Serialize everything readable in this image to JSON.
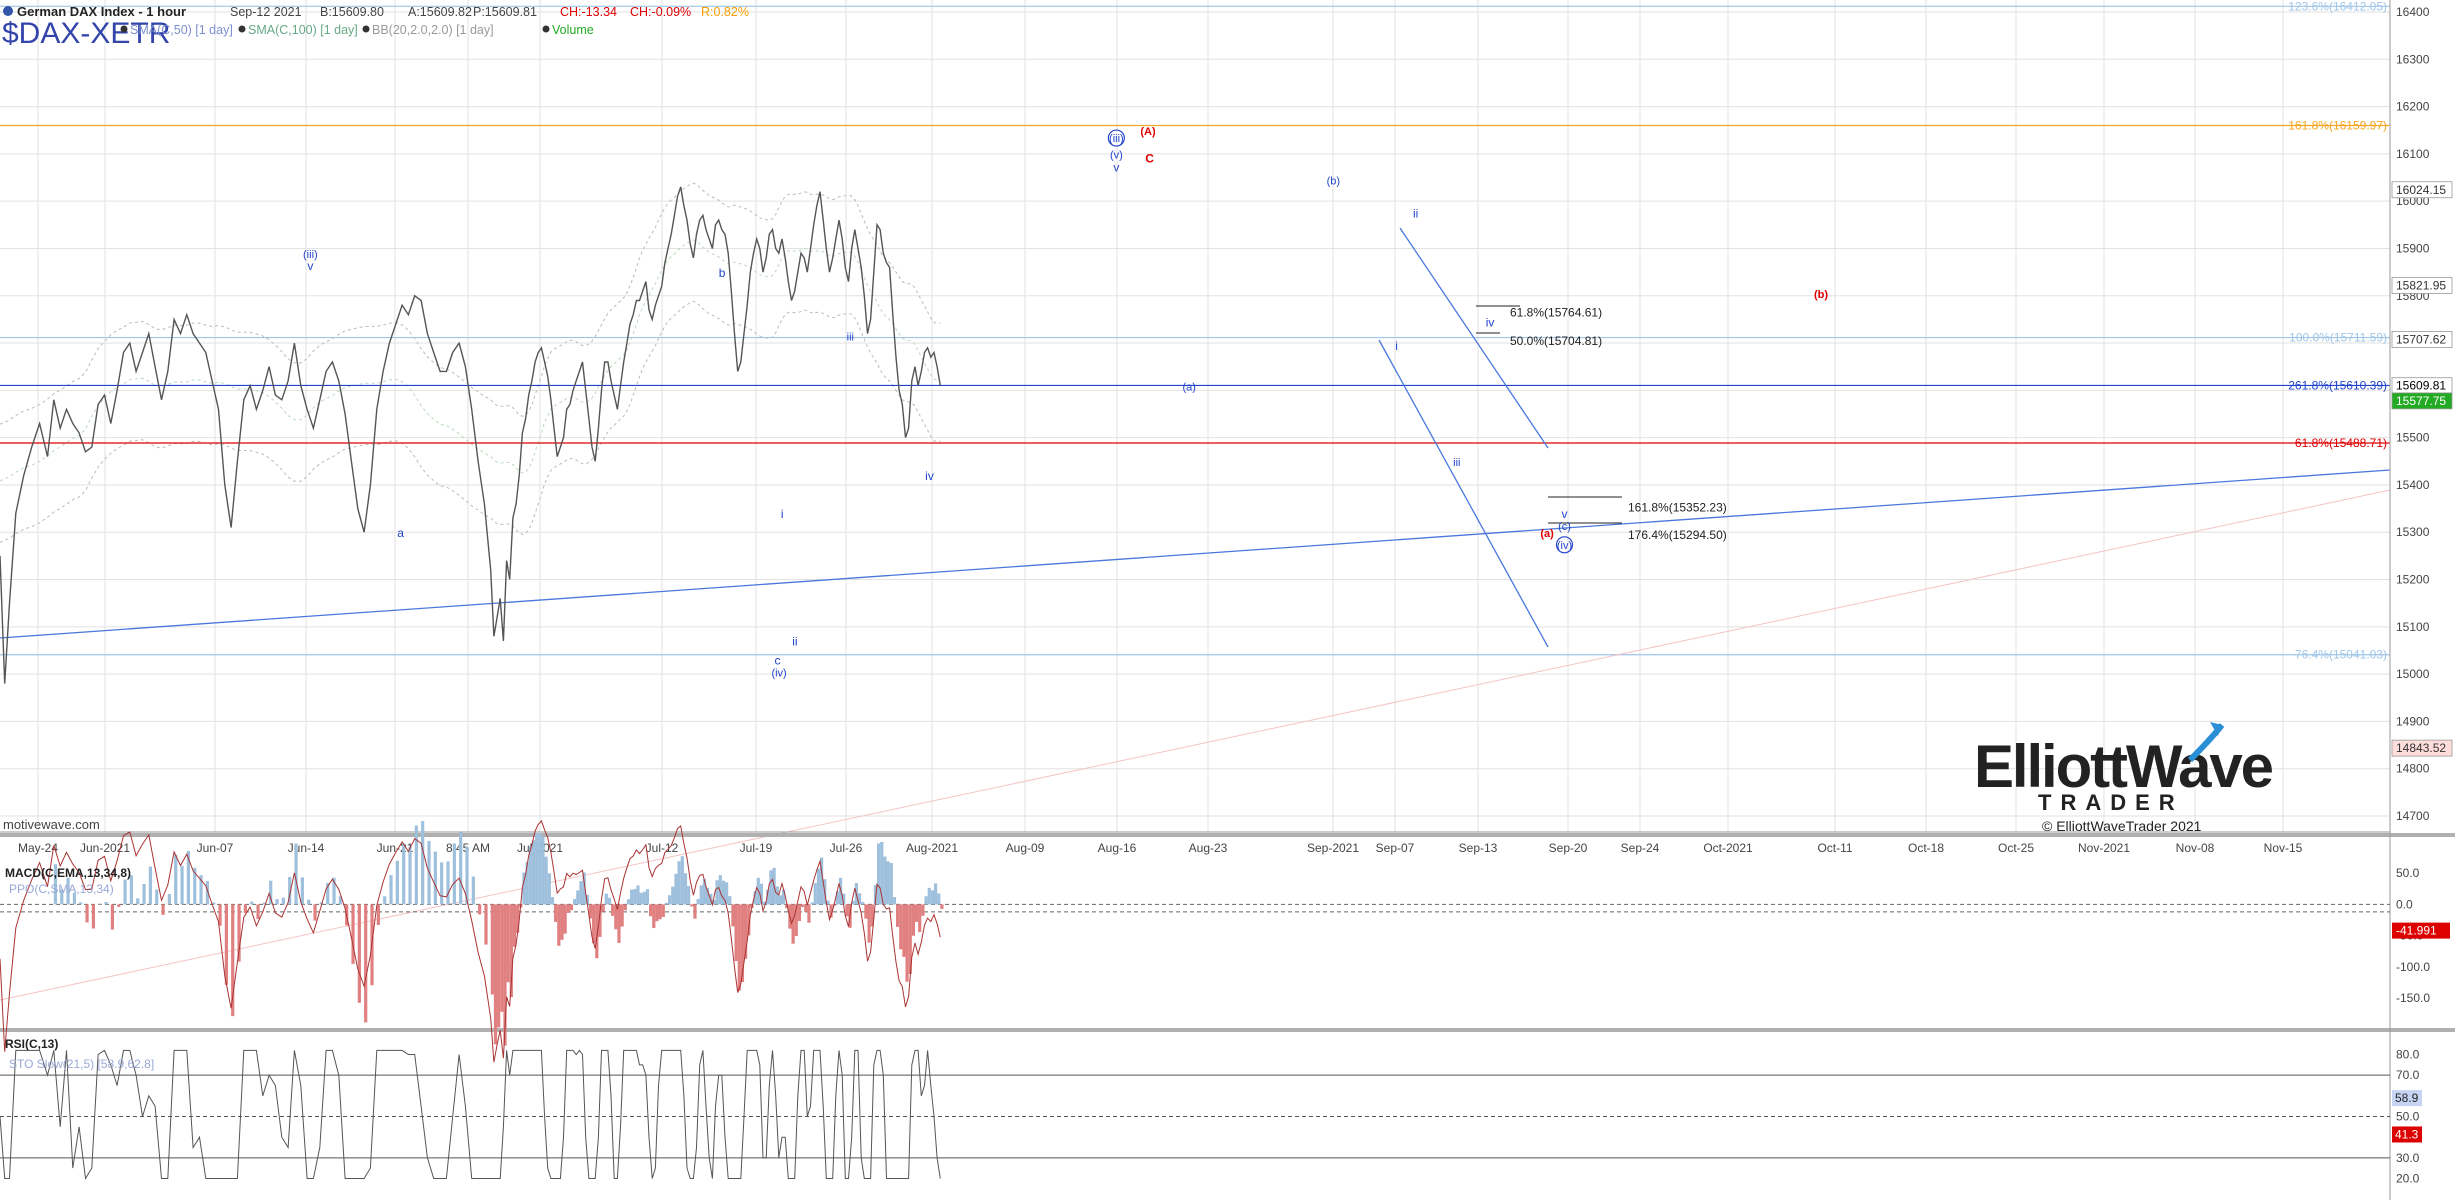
{
  "header": {
    "title": "German DAX Index - 1 hour",
    "date": "Sep-12 2021",
    "bid": "B:15609.80",
    "ask": "A:15609.82",
    "price": "P:15609.81",
    "change": "CH:-13.34",
    "change_pct": "CH:-0.09%",
    "range": "R:0.82%",
    "symbol": "$DAX-XETR",
    "indicators": [
      "SMA(C,50) [1 day]",
      "SMA(C,100) [1 day]",
      "BB(20,2.0,2.0) [1 day]",
      "Volume"
    ]
  },
  "watermark": "motivewave.com",
  "brand": {
    "line1": "ElliottWave",
    "line2": "TRADER",
    "copyright": "© ElliottWaveTrader 2021"
  },
  "colors": {
    "bars": "#555555",
    "blue": "#2244cc",
    "red": "#dd0000",
    "orange": "#f5a623",
    "light_blue": "#9fc6e8",
    "grid": "#e2e2e2"
  },
  "chart_data": [
    {
      "type": "line",
      "title": "German DAX Index - 1 hour",
      "x_ticks": [
        "May-24",
        "Jun-2021",
        "Jun-07",
        "Jun-14",
        "Jun-21",
        "8:45 AM",
        "Jul-2021",
        "Jul-12",
        "Jul-19",
        "Jul-26",
        "Aug-2021",
        "Aug-09",
        "Aug-16",
        "Aug-23",
        "Sep-2021",
        "Sep-07",
        "Sep-13",
        "Sep-20",
        "Sep-24",
        "Oct-2021",
        "Oct-11",
        "Oct-18",
        "Oct-25",
        "Nov-2021",
        "Nov-08",
        "Nov-15"
      ],
      "y_ticks": [
        14700,
        14800,
        14900,
        15000,
        15100,
        15200,
        15300,
        15400,
        15500,
        15600,
        15700,
        15800,
        15900,
        16000,
        16100,
        16200,
        16300,
        16400
      ],
      "ylim": [
        14660,
        16430
      ],
      "price_path": [
        [
          0,
          15250
        ],
        [
          3,
          14980
        ],
        [
          6,
          15150
        ],
        [
          10,
          15340
        ],
        [
          15,
          15420
        ],
        [
          20,
          15480
        ],
        [
          25,
          15530
        ],
        [
          30,
          15460
        ],
        [
          34,
          15580
        ],
        [
          38,
          15520
        ],
        [
          42,
          15560
        ],
        [
          46,
          15530
        ],
        [
          50,
          15510
        ],
        [
          54,
          15470
        ],
        [
          58,
          15480
        ],
        [
          62,
          15570
        ],
        [
          66,
          15590
        ],
        [
          70,
          15530
        ],
        [
          74,
          15600
        ],
        [
          78,
          15680
        ],
        [
          82,
          15700
        ],
        [
          86,
          15640
        ],
        [
          90,
          15680
        ],
        [
          94,
          15720
        ],
        [
          98,
          15650
        ],
        [
          102,
          15580
        ],
        [
          106,
          15640
        ],
        [
          110,
          15750
        ],
        [
          114,
          15720
        ],
        [
          118,
          15760
        ],
        [
          122,
          15720
        ],
        [
          126,
          15700
        ],
        [
          130,
          15680
        ],
        [
          134,
          15620
        ],
        [
          138,
          15560
        ],
        [
          142,
          15400
        ],
        [
          146,
          15310
        ],
        [
          150,
          15450
        ],
        [
          154,
          15580
        ],
        [
          158,
          15610
        ],
        [
          162,
          15560
        ],
        [
          166,
          15600
        ],
        [
          170,
          15650
        ],
        [
          174,
          15590
        ],
        [
          178,
          15580
        ],
        [
          182,
          15620
        ],
        [
          186,
          15700
        ],
        [
          190,
          15610
        ],
        [
          194,
          15560
        ],
        [
          198,
          15520
        ],
        [
          202,
          15580
        ],
        [
          206,
          15640
        ],
        [
          210,
          15660
        ],
        [
          214,
          15620
        ],
        [
          218,
          15550
        ],
        [
          222,
          15450
        ],
        [
          226,
          15350
        ],
        [
          230,
          15300
        ],
        [
          234,
          15400
        ],
        [
          238,
          15560
        ],
        [
          242,
          15640
        ],
        [
          246,
          15700
        ],
        [
          250,
          15740
        ],
        [
          254,
          15780
        ],
        [
          258,
          15760
        ],
        [
          262,
          15800
        ],
        [
          266,
          15790
        ],
        [
          270,
          15720
        ],
        [
          274,
          15680
        ],
        [
          278,
          15640
        ],
        [
          282,
          15640
        ],
        [
          286,
          15680
        ],
        [
          290,
          15700
        ],
        [
          294,
          15650
        ],
        [
          298,
          15560
        ],
        [
          302,
          15450
        ],
        [
          306,
          15360
        ],
        [
          310,
          15220
        ],
        [
          312,
          15080
        ],
        [
          314,
          15120
        ],
        [
          316,
          15160
        ],
        [
          318,
          15070
        ],
        [
          320,
          15240
        ],
        [
          322,
          15200
        ],
        [
          324,
          15330
        ],
        [
          326,
          15360
        ],
        [
          328,
          15420
        ],
        [
          330,
          15510
        ],
        [
          332,
          15540
        ],
        [
          334,
          15590
        ],
        [
          336,
          15620
        ],
        [
          338,
          15660
        ],
        [
          340,
          15680
        ],
        [
          342,
          15690
        ],
        [
          344,
          15660
        ],
        [
          346,
          15630
        ],
        [
          348,
          15580
        ],
        [
          350,
          15520
        ],
        [
          352,
          15460
        ],
        [
          354,
          15480
        ],
        [
          356,
          15500
        ],
        [
          358,
          15560
        ],
        [
          360,
          15570
        ],
        [
          362,
          15600
        ],
        [
          364,
          15620
        ],
        [
          366,
          15640
        ],
        [
          368,
          15660
        ],
        [
          370,
          15600
        ],
        [
          372,
          15540
        ],
        [
          374,
          15480
        ],
        [
          376,
          15450
        ],
        [
          378,
          15520
        ],
        [
          380,
          15600
        ],
        [
          382,
          15660
        ],
        [
          384,
          15660
        ],
        [
          386,
          15620
        ],
        [
          388,
          15590
        ],
        [
          390,
          15560
        ],
        [
          392,
          15610
        ],
        [
          394,
          15660
        ],
        [
          396,
          15700
        ],
        [
          398,
          15740
        ],
        [
          400,
          15760
        ],
        [
          402,
          15790
        ],
        [
          404,
          15790
        ],
        [
          406,
          15810
        ],
        [
          408,
          15830
        ],
        [
          410,
          15770
        ],
        [
          412,
          15750
        ],
        [
          414,
          15780
        ],
        [
          416,
          15800
        ],
        [
          418,
          15820
        ],
        [
          420,
          15870
        ],
        [
          422,
          15900
        ],
        [
          424,
          15930
        ],
        [
          426,
          15970
        ],
        [
          428,
          16010
        ],
        [
          430,
          16030
        ],
        [
          432,
          15990
        ],
        [
          434,
          15960
        ],
        [
          436,
          15910
        ],
        [
          438,
          15880
        ],
        [
          440,
          15930
        ],
        [
          442,
          15960
        ],
        [
          444,
          15970
        ],
        [
          446,
          15940
        ],
        [
          448,
          15920
        ],
        [
          450,
          15900
        ],
        [
          452,
          15950
        ],
        [
          454,
          15960
        ],
        [
          456,
          15940
        ],
        [
          458,
          15930
        ],
        [
          460,
          15890
        ],
        [
          462,
          15810
        ],
        [
          464,
          15720
        ],
        [
          466,
          15640
        ],
        [
          468,
          15660
        ],
        [
          470,
          15720
        ],
        [
          472,
          15780
        ],
        [
          474,
          15850
        ],
        [
          476,
          15890
        ],
        [
          478,
          15920
        ],
        [
          480,
          15900
        ],
        [
          482,
          15850
        ],
        [
          484,
          15880
        ],
        [
          486,
          15930
        ],
        [
          488,
          15940
        ],
        [
          490,
          15900
        ],
        [
          492,
          15890
        ],
        [
          494,
          15920
        ],
        [
          496,
          15880
        ],
        [
          498,
          15830
        ],
        [
          500,
          15790
        ],
        [
          502,
          15810
        ],
        [
          504,
          15850
        ],
        [
          506,
          15890
        ],
        [
          508,
          15880
        ],
        [
          510,
          15850
        ],
        [
          512,
          15900
        ],
        [
          514,
          15950
        ],
        [
          516,
          15990
        ],
        [
          518,
          16020
        ],
        [
          520,
          15960
        ],
        [
          522,
          15900
        ],
        [
          524,
          15850
        ],
        [
          526,
          15880
        ],
        [
          528,
          15920
        ],
        [
          530,
          15960
        ],
        [
          532,
          15920
        ],
        [
          534,
          15860
        ],
        [
          536,
          15830
        ],
        [
          538,
          15900
        ],
        [
          540,
          15940
        ],
        [
          542,
          15900
        ],
        [
          544,
          15860
        ],
        [
          546,
          15800
        ],
        [
          548,
          15720
        ],
        [
          550,
          15750
        ],
        [
          552,
          15850
        ],
        [
          554,
          15950
        ],
        [
          556,
          15940
        ],
        [
          558,
          15890
        ],
        [
          560,
          15870
        ],
        [
          562,
          15860
        ],
        [
          564,
          15760
        ],
        [
          566,
          15670
        ],
        [
          568,
          15600
        ],
        [
          570,
          15570
        ],
        [
          572,
          15500
        ],
        [
          574,
          15520
        ],
        [
          576,
          15620
        ],
        [
          578,
          15650
        ],
        [
          580,
          15610
        ],
        [
          582,
          15640
        ],
        [
          584,
          15680
        ],
        [
          586,
          15690
        ],
        [
          588,
          15670
        ],
        [
          590,
          15680
        ],
        [
          592,
          15650
        ],
        [
          594,
          15610
        ]
      ],
      "fib_levels": [
        {
          "label": "123.6%(16412.05)",
          "value": 16412.05,
          "color": "#9fc6e8"
        },
        {
          "label": "161.8%(16159.97)",
          "value": 16159.97,
          "color": "#f5a623"
        },
        {
          "label": "100.0%(15711.59)",
          "value": 15711.59,
          "color": "#9fc6e8"
        },
        {
          "label": "261.8%(15610.39)",
          "value": 15610.39,
          "color": "#2244cc"
        },
        {
          "label": "61.8%(15488.71)",
          "value": 15488.71,
          "color": "#dd0000"
        },
        {
          "label": "76.4%(15041.03)",
          "value": 15041.03,
          "color": "#9fc6e8"
        }
      ],
      "target_labels": [
        {
          "label": "61.8%(15764.61)",
          "value": 15764.61
        },
        {
          "label": "50.0%(15704.81)",
          "value": 15704.81
        },
        {
          "label": "161.8%(15352.23)",
          "value": 15352.23
        },
        {
          "label": "176.4%(15294.50)",
          "value": 15294.5
        }
      ],
      "price_tags": [
        {
          "text": "16024.15",
          "value": 16024.15,
          "bg": "#ffffff",
          "fg": "#333333"
        },
        {
          "text": "15821.95",
          "value": 15821.95,
          "bg": "#ffffff",
          "fg": "#333333"
        },
        {
          "text": "15707.62",
          "value": 15707.62,
          "bg": "#ffffff",
          "fg": "#333333"
        },
        {
          "text": "15609.81",
          "value": 15609.81,
          "bg": "#ffffff",
          "fg": "#000000"
        },
        {
          "text": "15577.75",
          "value": 15577.75,
          "bg": "#22aa22",
          "fg": "#ffffff"
        },
        {
          "text": "14843.52",
          "value": 14843.52,
          "bg": "#ffdddd",
          "fg": "#333333"
        }
      ],
      "wave_labels": [
        {
          "text": "(iii)",
          "x": 196,
          "value": 15880,
          "color": "#2244cc"
        },
        {
          "text": "v",
          "x": 196,
          "value": 15855,
          "color": "#2244cc"
        },
        {
          "text": "b",
          "x": 456,
          "value": 15840,
          "color": "#2244cc"
        },
        {
          "text": "a",
          "x": 253,
          "value": 15290,
          "color": "#2244cc"
        },
        {
          "text": "iii",
          "x": 537,
          "value": 15705,
          "color": "#2244cc"
        },
        {
          "text": "iv",
          "x": 587,
          "value": 15410,
          "color": "#2244cc"
        },
        {
          "text": "i",
          "x": 494,
          "value": 15330,
          "color": "#2244cc"
        },
        {
          "text": "ii",
          "x": 502,
          "value": 15060,
          "color": "#2244cc"
        },
        {
          "text": "c",
          "x": 491,
          "value": 15020,
          "color": "#2244cc"
        },
        {
          "text": "(iv)",
          "x": 492,
          "value": 14995,
          "color": "#2244cc"
        },
        {
          "text": "(iii)",
          "x": 705,
          "value": 16125,
          "color": "#2244cc",
          "circle": true
        },
        {
          "text": "(v)",
          "x": 705,
          "value": 16090,
          "color": "#2244cc"
        },
        {
          "text": "v",
          "x": 705,
          "value": 16063,
          "color": "#2244cc"
        },
        {
          "text": "(A)",
          "x": 725,
          "value": 16140,
          "color": "#dd0000"
        },
        {
          "text": "C",
          "x": 726,
          "value": 16082,
          "color": "#dd0000"
        },
        {
          "text": "(a)",
          "x": 751,
          "value": 15600,
          "color": "#2244cc"
        },
        {
          "text": "(b)",
          "x": 842,
          "value": 16035,
          "color": "#2244cc"
        },
        {
          "text": "ii",
          "x": 894,
          "value": 15965,
          "color": "#2244cc"
        },
        {
          "text": "i",
          "x": 882,
          "value": 15685,
          "color": "#2244cc"
        },
        {
          "text": "iii",
          "x": 920,
          "value": 15440,
          "color": "#2244cc"
        },
        {
          "text": "iv",
          "x": 941,
          "value": 15735,
          "color": "#2244cc"
        },
        {
          "text": "(b)",
          "x": 1150,
          "value": 15795,
          "color": "#dd0000"
        },
        {
          "text": "v",
          "x": 988,
          "value": 15330,
          "color": "#2244cc"
        },
        {
          "text": "(c)",
          "x": 988,
          "value": 15305,
          "color": "#2244cc"
        },
        {
          "text": "(iv)",
          "x": 988,
          "value": 15265,
          "color": "#2244cc",
          "circle": true
        },
        {
          "text": "(a)",
          "x": 977,
          "value": 15290,
          "color": "#dd0000"
        }
      ]
    },
    {
      "type": "line",
      "title": "MACD(C,EMA,13,34,8)",
      "subtitle": "PPO(C,SMA,13,34)",
      "y_ticks": [
        50.0,
        0.0,
        -50.0,
        -100.0,
        -150.0
      ],
      "ylim": [
        -185,
        95
      ],
      "value_tag": "-41.991"
    },
    {
      "type": "line",
      "title": "RSI(C,13)",
      "subtitle": "STO Slow(21,5) [58.9,62.8]",
      "y_ticks": [
        80.0,
        70.0,
        60.0,
        50.0,
        40.0,
        30.0,
        20.0
      ],
      "ylim": [
        12,
        88
      ],
      "value_tags": [
        "58.9",
        "41.3"
      ]
    }
  ]
}
